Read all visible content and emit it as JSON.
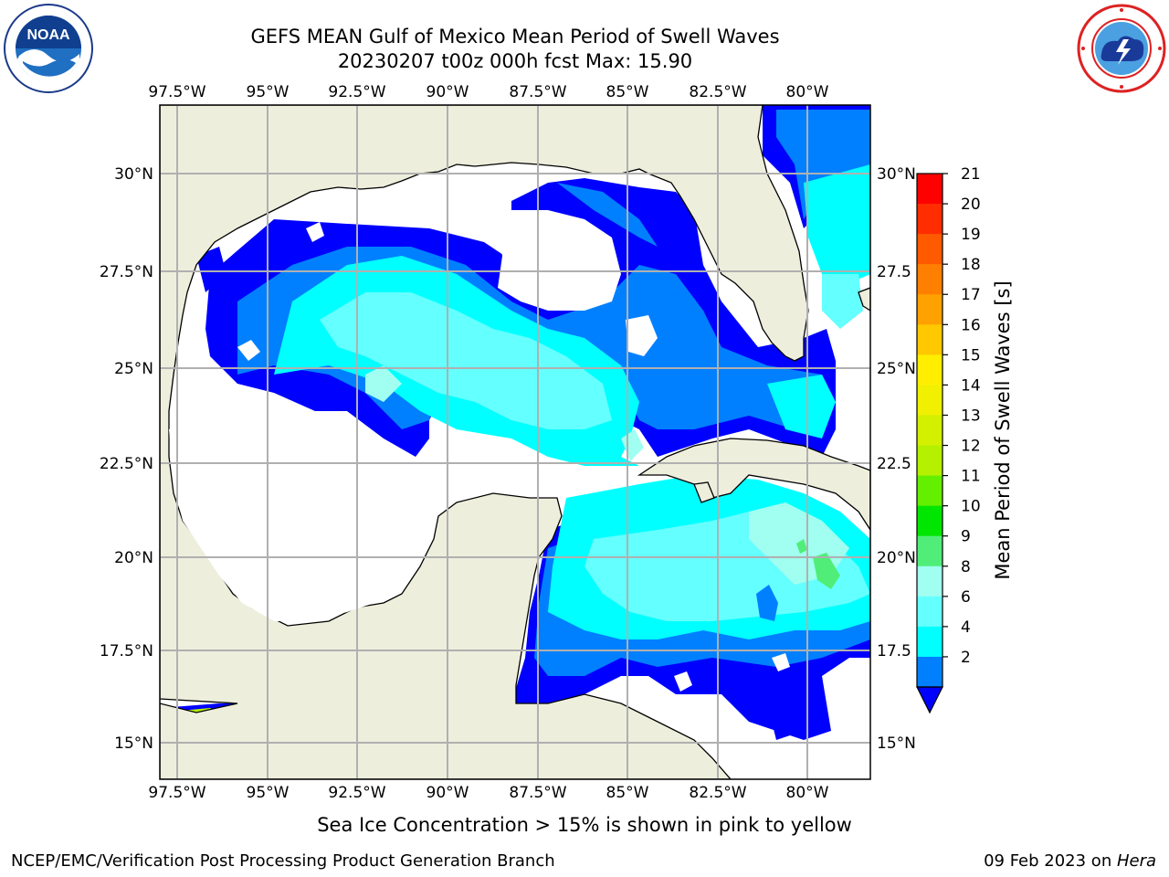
{
  "title": {
    "line1": "GEFS MEAN Gulf of Mexico Mean Period of Swell Waves",
    "line2": "20230207 t00z 000h fcst   Max: 15.90"
  },
  "map": {
    "type": "filled-contour-map",
    "region": "Gulf of Mexico",
    "lon_range": [
      -98.0,
      -78.3
    ],
    "lat_range": [
      14.0,
      31.7
    ],
    "grid": true,
    "lon_ticks_top": [
      "97.5°W",
      "95°W",
      "92.5°W",
      "90°W",
      "87.5°W",
      "85°W",
      "82.5°W",
      "80°W"
    ],
    "lon_ticks_bottom": [
      "97.5°W",
      "95°W",
      "92.5°W",
      "90°W",
      "87.5°W",
      "85°W",
      "82.5°W",
      "80°W"
    ],
    "lat_ticks_left": [
      "30°N",
      "27.5°N",
      "25°N",
      "22.5°N",
      "20°N",
      "17.5°N",
      "15°N"
    ],
    "lat_ticks_right": [
      "30°N",
      "27.5",
      "25°N",
      "22.5",
      "20°N",
      "17.5",
      "15°N"
    ],
    "land_color": "#eeeedd",
    "field_max": 15.9
  },
  "colorbar": {
    "label": "Mean Period of Swell Waves [s]",
    "ticks": [
      "21",
      "20",
      "19",
      "18",
      "17",
      "16",
      "15",
      "14",
      "13",
      "12",
      "11",
      "10",
      "9",
      "8",
      "6",
      "4",
      "2"
    ],
    "colors": [
      "#ff0000",
      "#ff2d00",
      "#ff5a00",
      "#ff7f00",
      "#ffa100",
      "#ffc800",
      "#ffee00",
      "#f0f000",
      "#d2f000",
      "#b4f000",
      "#64ee00",
      "#00e600",
      "#50ee78",
      "#a0fff0",
      "#64ffff",
      "#00ffff",
      "#0080ff"
    ],
    "extend_color": "#0000ff"
  },
  "caption": "Sea Ice Concentration > 15% is shown in pink to yellow",
  "footer": {
    "left": "NCEP/EMC/Verification Post Processing Product Generation Branch",
    "right_date": "09 Feb 2023 on ",
    "right_host": "Hera"
  },
  "logos": {
    "noaa_text": "NOAA",
    "nws_icon": "nws-logo-icon",
    "noaa_icon": "noaa-logo-icon"
  }
}
